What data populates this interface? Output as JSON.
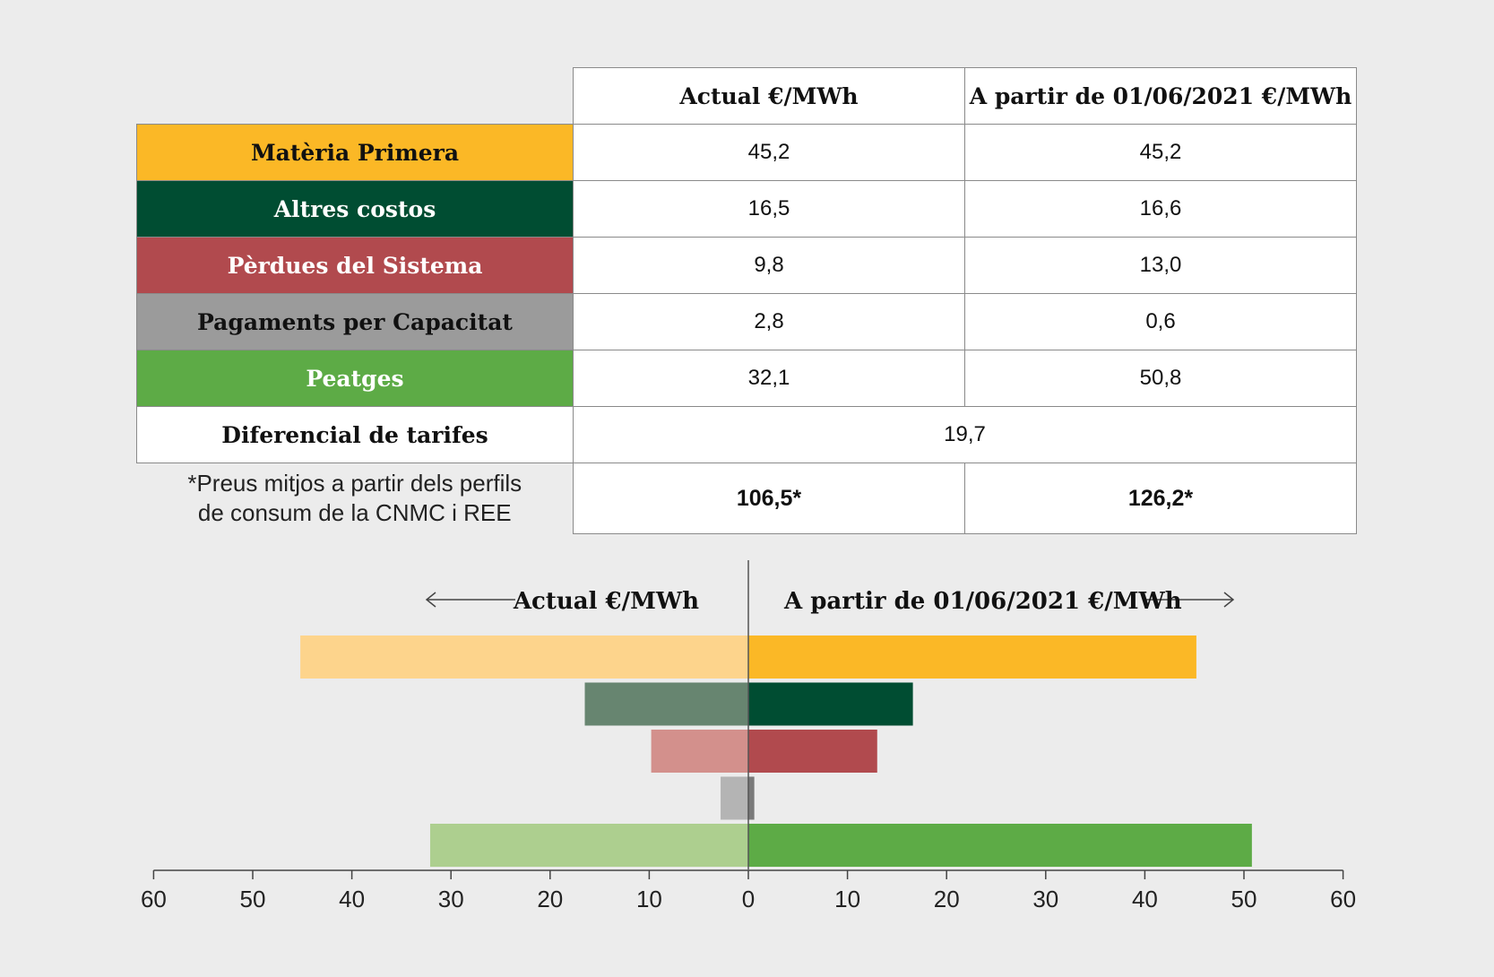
{
  "table": {
    "headers": [
      "Actual €/MWh",
      "A partir de 01/06/2021 €/MWh"
    ],
    "rows": [
      {
        "label": "Matèria Primera",
        "actual": "45,2",
        "new": "45,2",
        "bg": "#fbb826",
        "fg": "#111111"
      },
      {
        "label": "Altres costos",
        "actual": "16,5",
        "new": "16,6",
        "bg": "#004d32",
        "fg": "#ffffff"
      },
      {
        "label": "Pèrdues del Sistema",
        "actual": "9,8",
        "new": "13,0",
        "bg": "#b14a4e",
        "fg": "#ffffff"
      },
      {
        "label": "Pagaments per Capacitat",
        "actual": "2,8",
        "new": "0,6",
        "bg": "#9b9b9b",
        "fg": "#111111"
      },
      {
        "label": "Peatges",
        "actual": "32,1",
        "new": "50,8",
        "bg": "#5dab46",
        "fg": "#ffffff"
      }
    ],
    "diff_label": "Diferencial de tarifes",
    "diff_value": "19,7",
    "note_line1": "*Preus mitjos a partir dels perfils",
    "note_line2": "de consum de la CNMC i REE",
    "total_actual": "106,5*",
    "total_new": "126,2*"
  },
  "chart_data": {
    "type": "bar",
    "orientation": "horizontal-butterfly",
    "left_title": "Actual €/MWh",
    "right_title": "A partir de 01/06/2021 €/MWh",
    "categories": [
      "Matèria Primera",
      "Altres costos",
      "Pèrdues del Sistema",
      "Pagaments per Capacitat",
      "Peatges"
    ],
    "series": [
      {
        "name": "Actual €/MWh",
        "side": "left",
        "values": [
          45.2,
          16.5,
          9.8,
          2.8,
          32.1
        ],
        "colors": [
          "#fdd48c",
          "#678570",
          "#d3908c",
          "#b4b4b4",
          "#adcf8f"
        ]
      },
      {
        "name": "A partir de 01/06/2021 €/MWh",
        "side": "right",
        "values": [
          45.2,
          16.6,
          13.0,
          0.6,
          50.8
        ],
        "colors": [
          "#fbb826",
          "#004d32",
          "#b14a4e",
          "#7a7a7a",
          "#5dab46"
        ]
      }
    ],
    "xlim": [
      -60,
      60
    ],
    "tick_labels": [
      "60",
      "50",
      "40",
      "30",
      "20",
      "10",
      "0",
      "10",
      "20",
      "30",
      "40",
      "50",
      "60"
    ]
  }
}
